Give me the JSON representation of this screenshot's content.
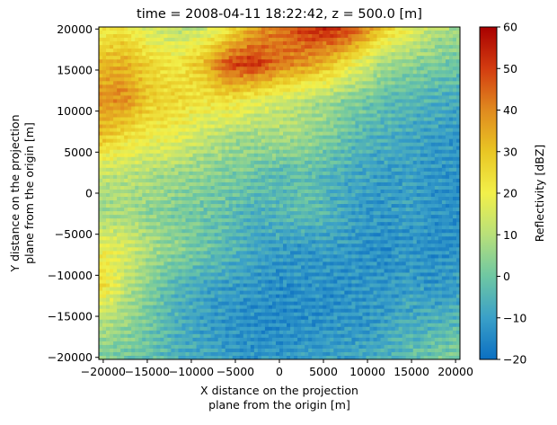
{
  "chart_data": {
    "type": "heatmap",
    "title": "time = 2008-04-11 18:22:42, z = 500.0 [m]",
    "xlabel_line1": "X distance on the projection",
    "xlabel_line2": "plane from the origin [m]",
    "ylabel_line1": "Y distance on the projection",
    "ylabel_line2": "plane from the origin [m]",
    "xlim": [
      -20500,
      20500
    ],
    "ylim": [
      -20250,
      20250
    ],
    "xticks": [
      -20000,
      -15000,
      -10000,
      -5000,
      0,
      5000,
      10000,
      15000,
      20000
    ],
    "yticks": [
      -20000,
      -15000,
      -10000,
      -5000,
      0,
      5000,
      10000,
      15000,
      20000
    ],
    "grid": false,
    "colorbar": {
      "label": "Reflectivity [dBZ]",
      "vmin": -20,
      "vmax": 60,
      "ticks": [
        -20,
        -10,
        0,
        10,
        20,
        30,
        40,
        50,
        60
      ],
      "colors": [
        "#0b6fc2",
        "#3aa0c8",
        "#6ec7a3",
        "#b8e07a",
        "#f2f04a",
        "#e9c624",
        "#e08a1f",
        "#d33c10",
        "#a80000"
      ]
    },
    "approx_field_dbz": [
      [
        20,
        22,
        14,
        10,
        12,
        20,
        35,
        42,
        52,
        55,
        48,
        30,
        20,
        10,
        8
      ],
      [
        32,
        34,
        26,
        22,
        30,
        48,
        52,
        42,
        38,
        30,
        18,
        8,
        4,
        2,
        0
      ],
      [
        38,
        40,
        28,
        26,
        22,
        24,
        18,
        14,
        10,
        6,
        2,
        -2,
        -4,
        -6,
        -8
      ],
      [
        30,
        24,
        20,
        18,
        12,
        8,
        6,
        8,
        6,
        2,
        -4,
        -6,
        -8,
        -10,
        -12
      ],
      [
        12,
        10,
        8,
        6,
        4,
        2,
        0,
        -4,
        -2,
        -6,
        -8,
        -10,
        -10,
        -12,
        -12
      ],
      [
        6,
        8,
        4,
        2,
        0,
        -2,
        -6,
        -4,
        -2,
        -6,
        -10,
        -12,
        -10,
        -12,
        -14
      ],
      [
        20,
        16,
        8,
        4,
        0,
        -4,
        -8,
        -10,
        -12,
        -10,
        -12,
        -14,
        -12,
        -14,
        -12
      ],
      [
        26,
        12,
        2,
        -4,
        -8,
        -10,
        -12,
        -14,
        -12,
        -14,
        -12,
        -12,
        -10,
        -12,
        -10
      ],
      [
        10,
        6,
        0,
        -6,
        -10,
        -12,
        -14,
        -14,
        -14,
        -12,
        -12,
        -10,
        -8,
        -6,
        -4
      ],
      [
        2,
        0,
        -2,
        -6,
        -8,
        -10,
        -12,
        -12,
        -10,
        -10,
        -8,
        -6,
        -2,
        0,
        4
      ]
    ]
  }
}
